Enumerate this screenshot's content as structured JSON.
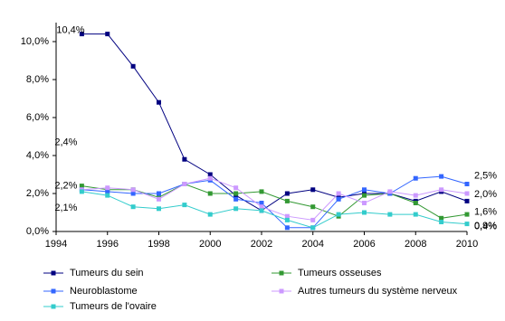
{
  "chart_data": {
    "type": "line",
    "x": [
      1995,
      1996,
      1997,
      1998,
      1999,
      2000,
      2001,
      2002,
      2003,
      2004,
      2005,
      2006,
      2007,
      2008,
      2009,
      2010
    ],
    "xlim": [
      1994,
      2010
    ],
    "xticks": [
      1994,
      1996,
      1998,
      2000,
      2002,
      2004,
      2006,
      2008,
      2010
    ],
    "ylim": [
      0,
      11
    ],
    "yticks": [
      {
        "value": 0,
        "label": "0,0%"
      },
      {
        "value": 2,
        "label": "2,0%"
      },
      {
        "value": 4,
        "label": "4,0%"
      },
      {
        "value": 6,
        "label": "6,0%"
      },
      {
        "value": 8,
        "label": "8,0%"
      },
      {
        "value": 10,
        "label": "10,0%"
      }
    ],
    "grid": false,
    "legend": "bottom",
    "series": [
      {
        "name": "Tumeurs du sein",
        "color": "#000080",
        "values": [
          10.4,
          10.4,
          8.7,
          6.8,
          3.8,
          3.0,
          1.9,
          1.1,
          2.0,
          2.2,
          1.8,
          2.0,
          2.0,
          1.6,
          2.1,
          1.6
        ],
        "value_labels": [
          "10,4%",
          null,
          null,
          null,
          null,
          null,
          null,
          null,
          null,
          null,
          null,
          null,
          null,
          null,
          null,
          "1,6%"
        ]
      },
      {
        "name": "Tumeurs osseuses",
        "color": "#339933",
        "values": [
          2.4,
          2.2,
          2.2,
          1.8,
          2.5,
          2.0,
          2.0,
          2.1,
          1.6,
          1.3,
          0.8,
          1.9,
          2.0,
          1.5,
          0.7,
          0.9
        ],
        "value_labels": [
          "2,4%",
          null,
          null,
          null,
          null,
          null,
          null,
          null,
          null,
          null,
          null,
          null,
          null,
          null,
          null,
          "0,9%"
        ]
      },
      {
        "name": "Neuroblastome",
        "color": "#3366ff",
        "values": [
          2.2,
          2.1,
          2.0,
          2.0,
          2.5,
          2.7,
          1.7,
          1.5,
          0.2,
          0.2,
          1.7,
          2.2,
          2.0,
          2.8,
          2.9,
          2.5
        ],
        "value_labels": [
          "2,2%",
          null,
          null,
          null,
          null,
          null,
          null,
          null,
          null,
          null,
          null,
          null,
          null,
          null,
          null,
          "2,5%"
        ]
      },
      {
        "name": "Autres tumeurs du système nerveux",
        "color": "#cc99ff",
        "values": [
          2.2,
          2.3,
          2.2,
          1.7,
          2.5,
          2.8,
          2.3,
          1.3,
          0.8,
          0.6,
          2.0,
          1.5,
          2.1,
          1.9,
          2.2,
          2.0
        ],
        "value_labels": [
          null,
          null,
          null,
          null,
          null,
          null,
          null,
          null,
          null,
          null,
          null,
          null,
          null,
          null,
          null,
          "2,0%"
        ]
      },
      {
        "name": "Tumeurs de l'ovaire",
        "color": "#33cccc",
        "values": [
          2.1,
          1.9,
          1.3,
          1.2,
          1.4,
          0.9,
          1.2,
          1.1,
          0.6,
          0.2,
          0.9,
          1.0,
          0.9,
          0.9,
          0.5,
          0.4
        ],
        "value_labels": [
          "2,1%",
          null,
          null,
          null,
          null,
          null,
          null,
          null,
          null,
          null,
          null,
          null,
          null,
          null,
          null,
          "0,4%"
        ]
      }
    ]
  }
}
